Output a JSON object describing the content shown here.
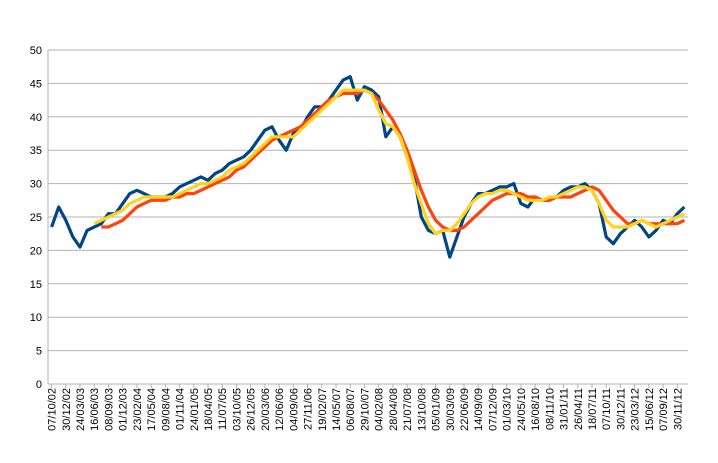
{
  "chart_data": {
    "type": "line",
    "categories": [
      "07/10/02",
      null,
      "30/12/02",
      null,
      "24/03/03",
      null,
      "16/06/03",
      null,
      "08/09/03",
      null,
      "01/12/03",
      null,
      "23/02/04",
      null,
      "17/05/04",
      null,
      "09/08/04",
      null,
      "01/11/04",
      null,
      "24/01/05",
      null,
      "18/04/05",
      null,
      "11/07/05",
      null,
      "03/10/05",
      null,
      "26/12/05",
      null,
      "20/03/06",
      null,
      "12/06/06",
      null,
      "04/09/06",
      null,
      "27/11/06",
      null,
      "19/02/07",
      null,
      "14/05/07",
      null,
      "06/08/07",
      null,
      "29/10/07",
      null,
      "04/02/08",
      null,
      "28/04/08",
      null,
      "21/07/08",
      null,
      "13/10/08",
      null,
      "05/01/09",
      null,
      "30/03/09",
      null,
      "22/06/09",
      null,
      "14/09/09",
      null,
      "07/12/09",
      null,
      "01/03/10",
      null,
      "24/05/10",
      null,
      "16/08/10",
      null,
      "08/11/10",
      null,
      "31/01/11",
      null,
      "26/04/11",
      null,
      "18/07/11",
      null,
      "07/10/11",
      null,
      "30/12/11",
      null,
      "23/03/12",
      null,
      "15/06/12",
      null,
      "07/09/12",
      null,
      "30/11/12",
      null
    ],
    "series": [
      {
        "color": "#004586",
        "values": [
          23.5,
          26.5,
          24.5,
          22,
          20.5,
          23,
          23.5,
          24,
          25.5,
          25.5,
          27,
          28.5,
          29,
          28.5,
          28,
          28,
          28,
          28.5,
          29.5,
          30,
          30.5,
          31,
          30.5,
          31.5,
          32,
          33,
          33.5,
          34,
          35,
          36.5,
          38,
          38.5,
          36.5,
          35,
          37.5,
          38,
          40,
          41.5,
          41.5,
          42.5,
          44,
          45.5,
          46,
          42.5,
          44.5,
          44,
          43,
          37,
          38.5,
          37,
          34,
          31,
          25,
          23,
          22.5,
          23,
          19,
          22,
          25,
          27,
          28.5,
          28.5,
          29,
          29.5,
          29.5,
          30,
          27,
          26.5,
          28,
          27.5,
          27.5,
          28,
          29,
          29.5,
          29.5,
          30,
          29,
          27,
          22,
          21,
          22.5,
          23.5,
          24.5,
          23.5,
          22,
          23,
          24.5,
          24,
          25.5,
          26.5
        ]
      },
      {
        "color": "#ff420e",
        "values": [
          null,
          null,
          null,
          null,
          null,
          null,
          null,
          23.5,
          23.5,
          24,
          24.5,
          25.5,
          26.5,
          27,
          27.5,
          27.5,
          27.5,
          28,
          28,
          28.5,
          28.5,
          29,
          29.5,
          30,
          30.5,
          31,
          32,
          32.5,
          33.5,
          34.5,
          35.5,
          36.5,
          37,
          37.5,
          38,
          38.5,
          39.5,
          40.5,
          41.5,
          42.5,
          43,
          43.5,
          43.5,
          43.5,
          44,
          43.5,
          42.5,
          41,
          39.5,
          37.5,
          35,
          32,
          29,
          26.5,
          24.5,
          23.5,
          23,
          23,
          23.5,
          24.5,
          25.5,
          26.5,
          27.5,
          28,
          28.5,
          28.5,
          28.5,
          28,
          28,
          27.5,
          27.5,
          28,
          28,
          28,
          28.5,
          29,
          29.5,
          29,
          27.5,
          26,
          25,
          24,
          24,
          24.5,
          24,
          24,
          24,
          24,
          24,
          24.5
        ]
      },
      {
        "color": "#ffd320",
        "values": [
          null,
          null,
          null,
          null,
          null,
          null,
          24,
          24.5,
          25,
          25.5,
          26,
          27,
          27.5,
          28,
          28,
          28,
          28,
          28,
          28.5,
          29,
          29.5,
          30,
          30,
          30.5,
          31,
          32,
          32.5,
          33,
          34,
          35,
          36,
          37,
          37,
          37,
          37,
          38,
          39,
          40,
          41,
          42,
          43,
          44,
          44,
          44,
          44,
          43.5,
          41,
          39,
          38.5,
          37,
          34,
          30,
          27,
          24,
          22.5,
          23,
          23,
          24,
          25.5,
          27,
          28,
          28.5,
          28.5,
          29,
          29,
          28.5,
          28,
          27.5,
          27.5,
          27.5,
          28,
          28,
          28.5,
          29,
          29.5,
          29.5,
          29,
          27,
          24.5,
          23.5,
          23.5,
          23.5,
          24,
          24.5,
          24,
          23.5,
          24,
          24.5,
          25,
          25.5
        ]
      }
    ],
    "ylim": [
      0,
      50
    ],
    "yticks": [
      0,
      5,
      10,
      15,
      20,
      25,
      30,
      35,
      40,
      45,
      50
    ],
    "grid": true
  }
}
